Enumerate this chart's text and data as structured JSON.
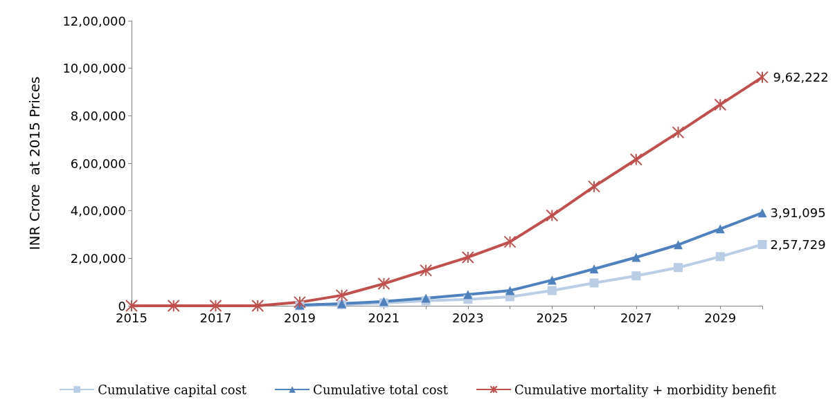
{
  "chart_data": {
    "type": "line",
    "ylabel": "INR Crore  at 2015 Prices",
    "categories": [
      "2015",
      null,
      "2017",
      null,
      "2019",
      null,
      "2021",
      null,
      "2023",
      null,
      "2025",
      null,
      "2027",
      null,
      "2029",
      null
    ],
    "series": [
      {
        "name": "Cumulative capital cost",
        "color": "#b9cde5",
        "marker": "square",
        "values": [
          null,
          null,
          null,
          null,
          0,
          5000,
          12000,
          21000,
          27000,
          38000,
          64000,
          96000,
          126000,
          161000,
          207000,
          257729
        ],
        "value_labels": [
          null,
          null,
          null,
          null,
          null,
          null,
          null,
          null,
          null,
          null,
          null,
          null,
          null,
          null,
          null,
          "2,57,729"
        ]
      },
      {
        "name": "Cumulative total cost",
        "color": "#4f81bd",
        "marker": "triangle",
        "values": [
          null,
          null,
          null,
          null,
          3000,
          9000,
          18000,
          32000,
          47000,
          64000,
          108000,
          155000,
          204000,
          257000,
          324000,
          391095
        ],
        "value_labels": [
          null,
          null,
          null,
          null,
          null,
          null,
          null,
          null,
          null,
          null,
          null,
          null,
          null,
          null,
          null,
          "3,91,095"
        ]
      },
      {
        "name": "Cumulative mortality + morbidity benefit",
        "color": "#c0504d",
        "marker": "cross",
        "values": [
          0,
          0,
          0,
          0,
          15000,
          44000,
          93000,
          149000,
          204000,
          269000,
          380000,
          502000,
          616000,
          730000,
          847000,
          962222
        ],
        "value_labels": [
          null,
          null,
          null,
          null,
          null,
          null,
          null,
          null,
          null,
          null,
          null,
          null,
          null,
          null,
          null,
          "9,62,222"
        ]
      }
    ],
    "ylim": [
      0,
      1200000
    ],
    "yticks": [
      0,
      {
        "value": 200000,
        "label": "2,00,000"
      },
      {
        "value": 400000,
        "label": "4,00,000"
      },
      {
        "value": 600000,
        "label": "6,00,000"
      },
      {
        "value": 800000,
        "label": "8,00,000"
      },
      {
        "value": 1000000,
        "label": "10,00,000"
      },
      {
        "value": 1200000,
        "label": "12,00,000"
      }
    ],
    "grid": false,
    "legend": "bottom"
  }
}
